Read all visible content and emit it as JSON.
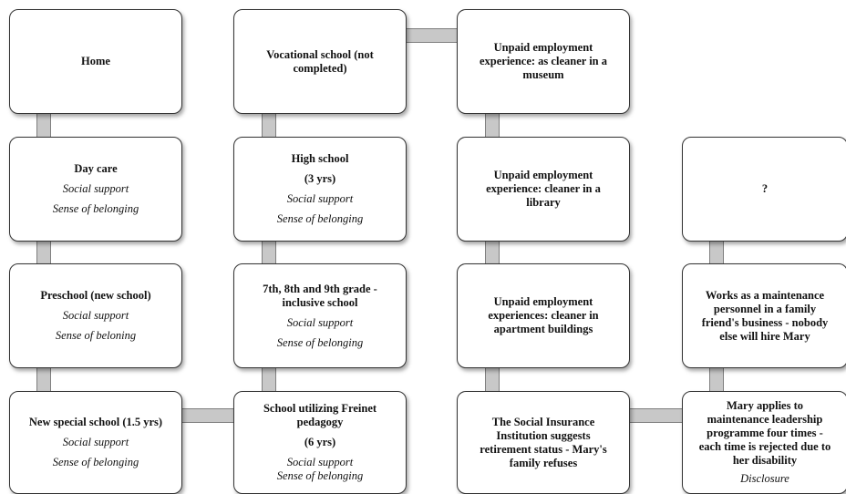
{
  "boxes": {
    "home": {
      "lines": [
        "Home"
      ]
    },
    "day_care": {
      "lines": [
        "Day care",
        "Social support",
        "Sense of belonging"
      ]
    },
    "preschool": {
      "lines": [
        "Preschool (new school)",
        "Social support",
        "Sense of beloning"
      ]
    },
    "new_special_school": {
      "lines": [
        "New special school (1.5 yrs)",
        "Social support",
        "Sense of belonging"
      ]
    },
    "vocational_school": {
      "lines": [
        "Vocational school (not",
        "completed)"
      ]
    },
    "high_school": {
      "lines": [
        "High school",
        "(3 yrs)",
        "Social support",
        "Sense of belonging"
      ]
    },
    "inclusive_school": {
      "lines": [
        "7th, 8th and 9th grade -",
        "inclusive  school",
        "Social support",
        "Sense of belonging"
      ]
    },
    "freinet_school": {
      "lines": [
        "School utilizing Freinet",
        "pedagogy",
        "(6 yrs)",
        "Social support",
        "Sense of belonging"
      ]
    },
    "museum_cleaner": {
      "lines": [
        "Unpaid employment",
        "experience: as cleaner in a",
        "museum"
      ]
    },
    "library_cleaner": {
      "lines": [
        "Unpaid employment",
        "experience: cleaner in a",
        "library"
      ]
    },
    "apartment_cleaner": {
      "lines": [
        "Unpaid employment",
        "experiences: cleaner in",
        "apartment buildings"
      ]
    },
    "social_insurance": {
      "lines": [
        "The Social Insurance",
        "Institution suggests",
        "retirement status - Mary's",
        "family refuses"
      ]
    },
    "unknown": {
      "lines": [
        "?"
      ]
    },
    "maintenance_work": {
      "lines": [
        "Works as a maintenance",
        "personnel in a family",
        "friend's business - nobody",
        "else will hire Mary"
      ]
    },
    "leadership_programme": {
      "lines": [
        "Mary applies to",
        "maintenance leadership",
        "programme four times -",
        "each time is rejected due to",
        "her disability",
        "Disclosure"
      ]
    }
  }
}
